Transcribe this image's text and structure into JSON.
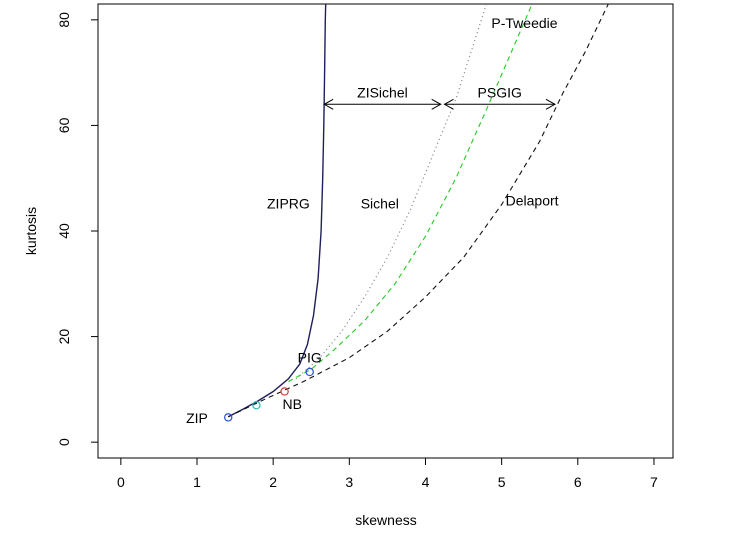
{
  "chart_data": {
    "type": "line",
    "xlabel": "skewness",
    "ylabel": "kurtosis",
    "xlim": [
      -0.3,
      7.25
    ],
    "ylim": [
      -3,
      83
    ],
    "x_ticks": [
      0,
      1,
      2,
      3,
      4,
      5,
      6,
      7
    ],
    "y_ticks": [
      0,
      20,
      40,
      60,
      80
    ],
    "grid": false,
    "series": [
      {
        "name": "ZIPRG",
        "style": "solid",
        "color": "#1f1f5c",
        "points": [
          [
            1.41,
            4.8
          ],
          [
            1.6,
            6.2
          ],
          [
            1.8,
            7.8
          ],
          [
            2.0,
            9.6
          ],
          [
            2.2,
            12.0
          ],
          [
            2.35,
            14.8
          ],
          [
            2.45,
            18.5
          ],
          [
            2.53,
            24.0
          ],
          [
            2.59,
            31.0
          ],
          [
            2.63,
            40.0
          ],
          [
            2.65,
            50.0
          ],
          [
            2.665,
            60.0
          ],
          [
            2.675,
            70.0
          ],
          [
            2.685,
            80.0
          ],
          [
            2.69,
            83.0
          ]
        ]
      },
      {
        "name": "Sichel",
        "style": "dotted",
        "color": "#888888",
        "points": [
          [
            2.3,
            12.0
          ],
          [
            2.6,
            15.8
          ],
          [
            2.9,
            21.0
          ],
          [
            3.2,
            27.5
          ],
          [
            3.5,
            35.0
          ],
          [
            3.8,
            44.0
          ],
          [
            4.1,
            54.5
          ],
          [
            4.4,
            65.0
          ],
          [
            4.6,
            74.0
          ],
          [
            4.8,
            83.0
          ]
        ]
      },
      {
        "name": "PSGIG",
        "style": "dashed",
        "color": "#22cc22",
        "points": [
          [
            2.2,
            11.5
          ],
          [
            2.5,
            13.8
          ],
          [
            2.8,
            17.5
          ],
          [
            3.2,
            23.0
          ],
          [
            3.6,
            30.0
          ],
          [
            4.0,
            39.0
          ],
          [
            4.4,
            50.0
          ],
          [
            4.8,
            63.0
          ],
          [
            5.1,
            73.0
          ],
          [
            5.4,
            83.0
          ]
        ]
      },
      {
        "name": "Delaport",
        "style": "dashed",
        "color": "#111111",
        "points": [
          [
            1.41,
            4.8
          ],
          [
            1.9,
            8.2
          ],
          [
            2.4,
            11.5
          ],
          [
            3.0,
            16.0
          ],
          [
            3.5,
            21.0
          ],
          [
            4.0,
            27.5
          ],
          [
            4.5,
            35.0
          ],
          [
            5.0,
            45.0
          ],
          [
            5.5,
            57.0
          ],
          [
            5.8,
            66.0
          ],
          [
            6.1,
            74.0
          ],
          [
            6.4,
            83.0
          ]
        ]
      }
    ],
    "points": [
      {
        "name": "ZIP",
        "x": 1.41,
        "y": 4.7,
        "color": "#2b4fcf"
      },
      {
        "name": "NB",
        "x": 2.15,
        "y": 9.6,
        "color": "#d04040"
      },
      {
        "name": "PIG",
        "x": 2.48,
        "y": 13.3,
        "color": "#2b4fcf"
      },
      {
        "name": "",
        "x": 1.78,
        "y": 7.0,
        "color": "#2bb8b8"
      }
    ],
    "labels": [
      {
        "text": "ZIPRG",
        "x": 2.2,
        "y": 45
      },
      {
        "text": "Sichel",
        "x": 3.4,
        "y": 45
      },
      {
        "text": "Delaport",
        "x": 5.4,
        "y": 45.5
      },
      {
        "text": "P-Tweedie",
        "x": 5.3,
        "y": 79.2
      },
      {
        "text": "ZIP",
        "x": 1.0,
        "y": 4.3
      },
      {
        "text": "NB",
        "x": 2.25,
        "y": 7.0
      },
      {
        "text": "PIG",
        "x": 2.48,
        "y": 15.8
      }
    ],
    "ranges": [
      {
        "text": "ZISichel",
        "x_from": 2.67,
        "x_to": 4.2,
        "y": 64
      },
      {
        "text": "PSGIG",
        "x_from": 4.25,
        "x_to": 5.7,
        "y": 64
      }
    ]
  }
}
